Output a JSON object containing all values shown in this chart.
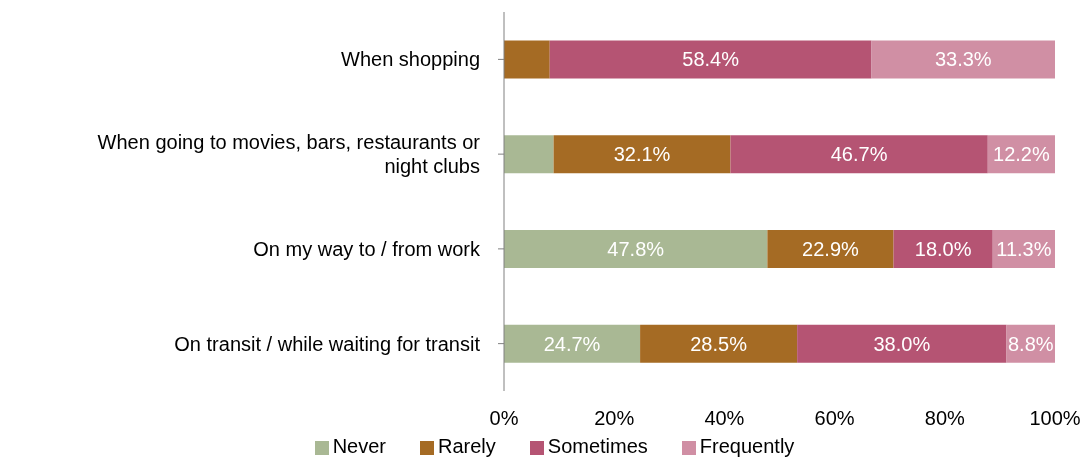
{
  "chart_data": {
    "type": "bar",
    "orientation": "horizontal",
    "stacked": true,
    "categories": [
      "When shopping",
      "When going to movies, bars, restaurants or night clubs",
      "On my way to / from work",
      "On transit / while waiting for transit"
    ],
    "series": [
      {
        "name": "Never",
        "color": "#a9b894",
        "values": [
          0,
          9.0,
          47.8,
          24.7
        ],
        "value_labels": [
          null,
          null,
          "47.8%",
          "24.7%"
        ]
      },
      {
        "name": "Rarely",
        "color": "#a56b24",
        "values": [
          8.3,
          32.1,
          22.9,
          28.5
        ],
        "value_labels": [
          null,
          "32.1%",
          "22.9%",
          "28.5%"
        ]
      },
      {
        "name": "Sometimes",
        "color": "#b55473",
        "values": [
          58.4,
          46.7,
          18.0,
          38.0
        ],
        "value_labels": [
          "58.4%",
          "46.7%",
          "18.0%",
          "38.0%"
        ]
      },
      {
        "name": "Frequently",
        "color": "#d08fa4",
        "values": [
          33.3,
          12.2,
          11.3,
          8.8
        ],
        "value_labels": [
          "33.3%",
          "12.2%",
          "11.3%",
          "8.8%"
        ]
      }
    ],
    "xlim": [
      0,
      100
    ],
    "xticks": [
      {
        "value": 0,
        "label": "0%"
      },
      {
        "value": 20,
        "label": "20%"
      },
      {
        "value": 40,
        "label": "40%"
      },
      {
        "value": 60,
        "label": "60%"
      },
      {
        "value": 80,
        "label": "80%"
      },
      {
        "value": 100,
        "label": "100%"
      }
    ],
    "grid": false,
    "legend": "bottom"
  }
}
